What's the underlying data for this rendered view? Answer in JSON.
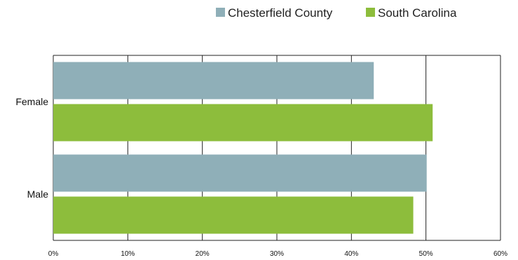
{
  "chart_data": {
    "type": "bar",
    "orientation": "horizontal",
    "categories": [
      "Female",
      "Male"
    ],
    "series": [
      {
        "name": "Chesterfield County",
        "color": "#8fafb8",
        "values": [
          43.0,
          50.1
        ]
      },
      {
        "name": "South Carolina",
        "color": "#8dbd3c",
        "values": [
          50.9,
          48.3
        ]
      }
    ],
    "title": "",
    "xlabel": "",
    "ylabel": "",
    "xlim": [
      0,
      60
    ],
    "x_ticks": [
      0,
      10,
      20,
      30,
      40,
      50,
      60
    ],
    "x_tick_labels": [
      "0%",
      "10%",
      "20%",
      "30%",
      "40%",
      "50%",
      "60%"
    ],
    "grid": "vertical",
    "legend_position": "top-right"
  }
}
